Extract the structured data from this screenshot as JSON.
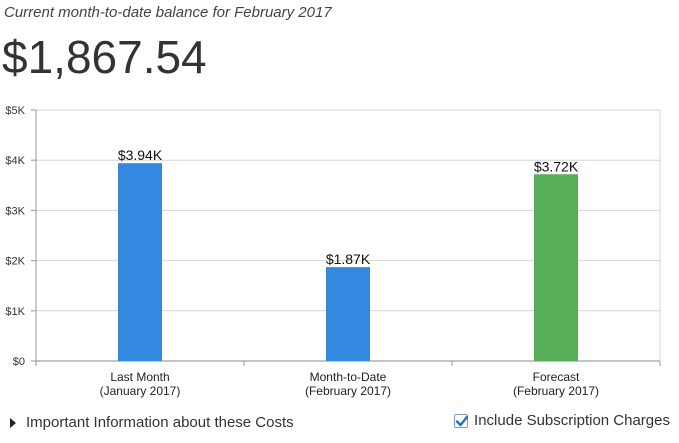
{
  "header": {
    "subtitle": "Current month-to-date balance for February 2017",
    "balance": "$1,867.54"
  },
  "chart_data": {
    "type": "bar",
    "categories": [
      [
        "Last Month",
        "(January 2017)"
      ],
      [
        "Month-to-Date",
        "(February 2017)"
      ],
      [
        "Forecast",
        "(February 2017)"
      ]
    ],
    "values": [
      3940,
      1870,
      3720
    ],
    "data_labels": [
      "$3.94K",
      "$1.87K",
      "$3.72K"
    ],
    "colors": [
      "#3388e0",
      "#3388e0",
      "#56ae57"
    ],
    "ylim": [
      0,
      5000
    ],
    "yticks": [
      0,
      1000,
      2000,
      3000,
      4000,
      5000
    ],
    "ytick_labels": [
      "$0",
      "$1K",
      "$2K",
      "$3K",
      "$4K",
      "$5K"
    ],
    "grid": true,
    "legend": "none"
  },
  "footer": {
    "info_label": "Important Information about these Costs",
    "subscription_label": "Include Subscription Charges",
    "subscription_checked": true
  }
}
